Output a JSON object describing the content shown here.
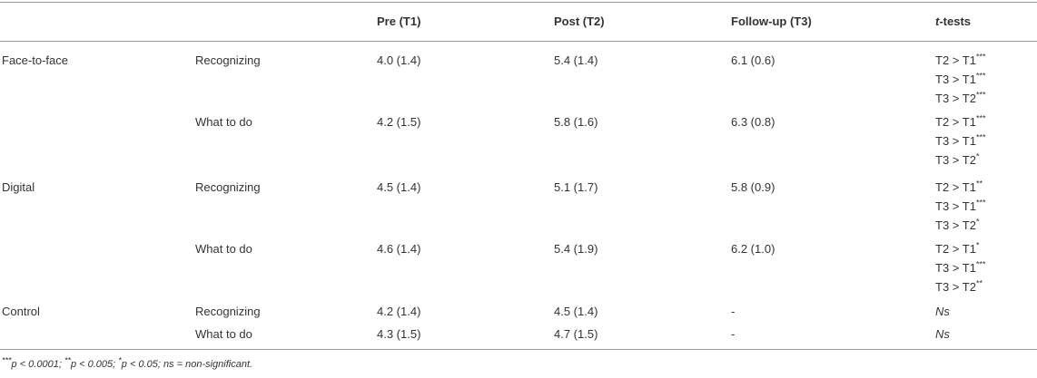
{
  "table": {
    "header": {
      "columns": [
        "Pre (T1)",
        "Post (T2)",
        "Follow-up (T3)"
      ],
      "ttests": [
        "t",
        "-tests"
      ]
    },
    "rows": [
      {
        "group": "Face-to-face",
        "measure": "Recognizing",
        "pre": "4.0 (1.4)",
        "post": "5.4 (1.4)",
        "follow": "6.1 (0.6)",
        "ttests": [
          {
            "text": "T2 > T1",
            "sig": "***"
          },
          {
            "text": "T3 > T1",
            "sig": "***"
          },
          {
            "text": "T3 > T2",
            "sig": "***"
          }
        ]
      },
      {
        "measure": "What to do",
        "pre": "4.2 (1.5)",
        "post": "5.8 (1.6)",
        "follow": "6.3 (0.8)",
        "ttests": [
          {
            "text": "T2 > T1",
            "sig": "***"
          },
          {
            "text": "T3 > T1",
            "sig": "***"
          },
          {
            "text": "T3 > T2",
            "sig": "*"
          }
        ]
      },
      {
        "group": "Digital",
        "measure": "Recognizing",
        "pre": "4.5 (1.4)",
        "post": "5.1 (1.7)",
        "follow": "5.8 (0.9)",
        "ttests": [
          {
            "text": "T2 > T1",
            "sig": "**"
          },
          {
            "text": "T3 > T1",
            "sig": "***"
          },
          {
            "text": "T3 > T2",
            "sig": "*"
          }
        ]
      },
      {
        "measure": "What to do",
        "pre": "4.6 (1.4)",
        "post": "5.4 (1.9)",
        "follow": "6.2 (1.0)",
        "ttests": [
          {
            "text": "T2 > T1",
            "sig": "*"
          },
          {
            "text": "T3 > T1",
            "sig": "***"
          },
          {
            "text": "T3 > T2",
            "sig": "**"
          }
        ]
      },
      {
        "group": "Control",
        "measure": "Recognizing",
        "pre": "4.2 (1.4)",
        "post": "4.5 (1.4)",
        "follow": "-",
        "ttests_ns": "Ns"
      },
      {
        "measure": "What to do",
        "pre": "4.3 (1.5)",
        "post": "4.7 (1.5)",
        "follow": "-",
        "ttests_ns": "Ns"
      }
    ],
    "footnote": [
      "***",
      "p < 0.0001; ",
      "**",
      "p < 0.005; ",
      "*",
      "p < 0.05; ns = non-significant."
    ]
  }
}
